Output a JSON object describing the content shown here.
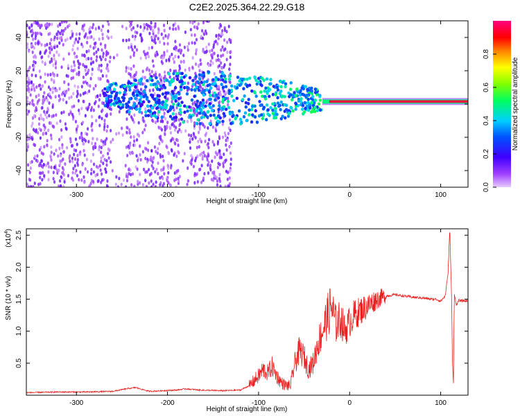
{
  "title": "C2E2.2025.364.22.29.G18",
  "colors": {
    "snr_line": "#e8201f",
    "frame": "#000000",
    "background": "#ffffff"
  },
  "chart_data": [
    {
      "type": "heatmap",
      "name": "spectrogram",
      "xlabel": "Height of straight line (km)",
      "ylabel": "Frequency (Hz)",
      "xlim": [
        -355,
        130
      ],
      "ylim": [
        -50,
        50
      ],
      "xticks": [
        -300,
        -200,
        -100,
        0,
        100
      ],
      "xtick_labels": [
        "-300",
        "-200",
        "-100",
        "0",
        "100"
      ],
      "yticks": [
        -40,
        -20,
        0,
        20,
        40
      ],
      "ytick_labels": [
        "-40",
        "-20",
        "0",
        "20",
        "40"
      ],
      "colorbar": {
        "label": "Normalized spectral amplitude",
        "range": [
          0,
          1
        ],
        "ticks": [
          0.0,
          0.2,
          0.4,
          0.6,
          0.8
        ],
        "tick_labels": [
          "0.0",
          "0.2",
          "0.4",
          "0.6",
          "0.8"
        ],
        "colormap": "rainbow (purple-blue-cyan-green-yellow-orange-red-magenta)"
      },
      "features": [
        {
          "description": "broadband noise",
          "x_range": [
            -355,
            -130
          ],
          "freq_range": [
            -50,
            50
          ],
          "amplitude": 0.1
        },
        {
          "description": "scattered signal band",
          "x_range": [
            -270,
            -30
          ],
          "freq_center": 5,
          "amplitude": 0.3
        },
        {
          "description": "narrow tone",
          "x_range": [
            -30,
            130
          ],
          "freq_center": 1.5,
          "amplitude": 0.95
        }
      ]
    },
    {
      "type": "line",
      "name": "snr",
      "xlabel": "Height of straight line (km)",
      "ylabel": "SNR (10 * v/v)",
      "multiplier_label": "(x10",
      "multiplier_exp": "4",
      "multiplier_close": ")",
      "xlim": [
        -355,
        130
      ],
      "ylim": [
        0,
        2.6
      ],
      "xticks": [
        -300,
        -200,
        -100,
        0,
        100
      ],
      "xtick_labels": [
        "-300",
        "-200",
        "-100",
        "0",
        "100"
      ],
      "yticks": [
        0.5,
        1.0,
        1.5,
        2.0,
        2.5
      ],
      "ytick_labels": [
        "0.5",
        "1.0",
        "1.5",
        "2.0",
        "2.5"
      ],
      "series": [
        {
          "name": "SNR",
          "x": [
            -355,
            -320,
            -290,
            -260,
            -245,
            -235,
            -220,
            -190,
            -180,
            -165,
            -140,
            -120,
            -110,
            -100,
            -95,
            -90,
            -85,
            -80,
            -75,
            -70,
            -65,
            -60,
            -55,
            -50,
            -45,
            -40,
            -35,
            -30,
            -25,
            -20,
            -15,
            -10,
            -5,
            0,
            5,
            10,
            15,
            20,
            25,
            30,
            35,
            40,
            50,
            60,
            70,
            80,
            90,
            95,
            100,
            105,
            108,
            110,
            112,
            113,
            114,
            115,
            117,
            120,
            130
          ],
          "y": [
            0.04,
            0.05,
            0.05,
            0.06,
            0.1,
            0.12,
            0.06,
            0.08,
            0.1,
            0.08,
            0.07,
            0.08,
            0.15,
            0.3,
            0.4,
            0.35,
            0.45,
            0.3,
            0.2,
            0.15,
            0.15,
            0.5,
            0.7,
            0.6,
            0.4,
            0.5,
            0.8,
            1.0,
            1.2,
            1.4,
            1.1,
            1.2,
            1.0,
            1.15,
            1.25,
            1.3,
            1.35,
            1.4,
            1.45,
            1.5,
            1.53,
            1.55,
            1.57,
            1.55,
            1.53,
            1.52,
            1.5,
            1.5,
            1.47,
            1.55,
            1.9,
            2.6,
            1.5,
            0.5,
            0.2,
            1.6,
            1.4,
            1.48,
            1.47
          ]
        }
      ]
    }
  ]
}
